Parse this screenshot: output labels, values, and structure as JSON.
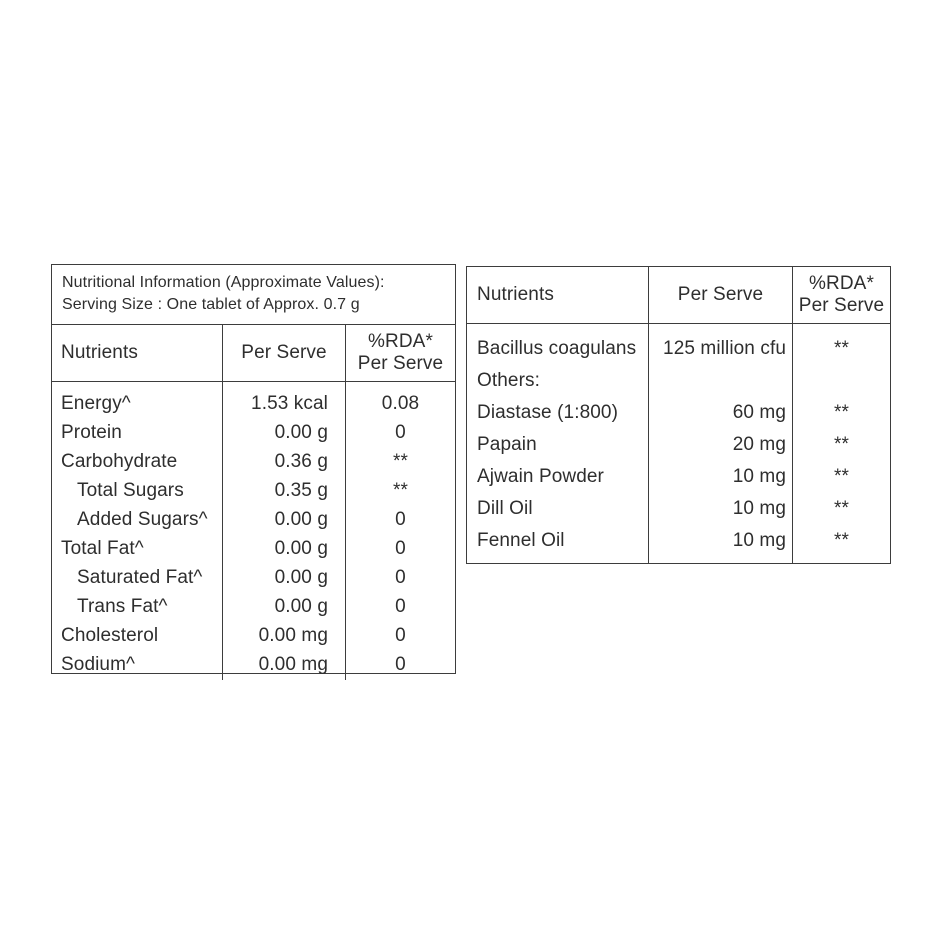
{
  "colors": {
    "line": "#3d3d3d",
    "text": "#2e2e2e",
    "bg": "#ffffff"
  },
  "left_table": {
    "title_line1": "Nutritional Information (Approximate Values):",
    "title_line2": "Serving Size : One tablet of Approx. 0.7 g",
    "headers": {
      "nutrients": "Nutrients",
      "per_serve": "Per Serve",
      "rda_line1": "%RDA*",
      "rda_line2": "Per Serve"
    },
    "rows": [
      {
        "nutrient": "Energy^",
        "per_serve": "1.53 kcal",
        "rda": "0.08"
      },
      {
        "nutrient": "Protein",
        "per_serve": "0.00 g",
        "rda": "0"
      },
      {
        "nutrient": "Carbohydrate",
        "per_serve": "0.36 g",
        "rda": "**"
      },
      {
        "nutrient": "Total Sugars",
        "per_serve": "0.35 g",
        "rda": "**"
      },
      {
        "nutrient": "Added Sugars^",
        "per_serve": "0.00 g",
        "rda": "0"
      },
      {
        "nutrient": "Total Fat^",
        "per_serve": "0.00 g",
        "rda": "0"
      },
      {
        "nutrient": "Saturated Fat^",
        "per_serve": "0.00 g",
        "rda": "0"
      },
      {
        "nutrient": "Trans Fat^",
        "per_serve": "0.00 g",
        "rda": "0"
      },
      {
        "nutrient": "Cholesterol",
        "per_serve": "0.00 mg",
        "rda": "0"
      },
      {
        "nutrient": "Sodium^",
        "per_serve": "0.00 mg",
        "rda": "0"
      }
    ]
  },
  "right_table": {
    "headers": {
      "nutrients": "Nutrients",
      "per_serve": "Per Serve",
      "rda_line1": "%RDA*",
      "rda_line2": "Per Serve"
    },
    "rows": [
      {
        "nutrient": "Bacillus coagulans",
        "per_serve": "125 million cfu",
        "rda": "**"
      },
      {
        "nutrient": "Others:",
        "per_serve": "",
        "rda": ""
      },
      {
        "nutrient": "Diastase (1:800)",
        "per_serve": "60 mg",
        "rda": "**"
      },
      {
        "nutrient": "Papain",
        "per_serve": "20 mg",
        "rda": "**"
      },
      {
        "nutrient": "Ajwain Powder",
        "per_serve": "10 mg",
        "rda": "**"
      },
      {
        "nutrient": "Dill Oil",
        "per_serve": "10 mg",
        "rda": "**"
      },
      {
        "nutrient": "Fennel Oil",
        "per_serve": "10 mg",
        "rda": "**"
      }
    ]
  }
}
